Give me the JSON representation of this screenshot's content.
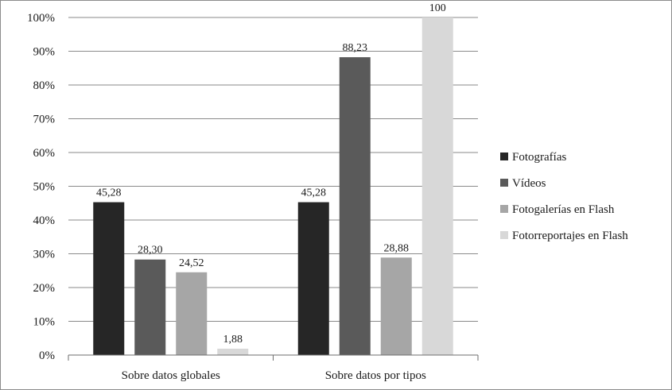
{
  "chart_data": {
    "type": "bar",
    "categories": [
      "Sobre datos globales",
      "Sobre datos por tipos"
    ],
    "series": [
      {
        "name": "Fotografías",
        "color": "#262626",
        "values": [
          45.28,
          45.28
        ],
        "labels": [
          "45,28",
          "45,28"
        ]
      },
      {
        "name": "Vídeos",
        "color": "#5a5a5a",
        "values": [
          28.3,
          88.23
        ],
        "labels": [
          "28,30",
          "88,23"
        ]
      },
      {
        "name": "Fotogalerías en Flash",
        "color": "#a6a6a6",
        "values": [
          24.52,
          28.88
        ],
        "labels": [
          "24,52",
          "28,88"
        ]
      },
      {
        "name": "Fotorreportajes en Flash",
        "color": "#d8d8d8",
        "values": [
          1.88,
          100
        ],
        "labels": [
          "1,88",
          "100"
        ]
      }
    ],
    "y_ticks": [
      "0%",
      "10%",
      "20%",
      "30%",
      "40%",
      "50%",
      "60%",
      "70%",
      "80%",
      "90%",
      "100%"
    ],
    "ylim": [
      0,
      100
    ],
    "grid": true,
    "legend_position": "right"
  }
}
